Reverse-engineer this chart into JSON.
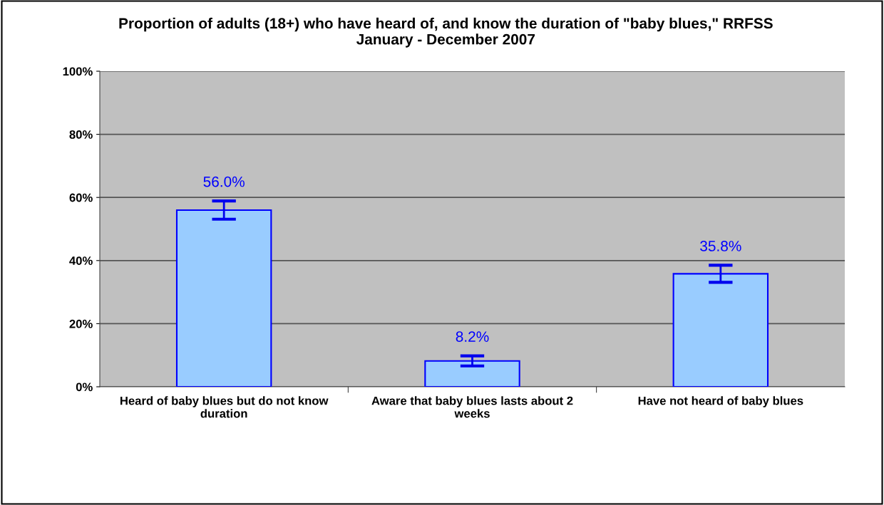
{
  "chart_data": {
    "type": "bar",
    "title": "Proportion of adults (18+) who have heard of, and know the duration of \"baby blues,\" RRFSS January - December 2007",
    "categories": [
      "Heard of baby blues but do not know duration",
      "Aware that baby blues lasts about 2 weeks",
      "Have not heard of baby blues"
    ],
    "values": [
      56.0,
      8.2,
      35.8
    ],
    "errors": [
      2.9,
      1.6,
      2.7
    ],
    "value_labels": [
      "56.0%",
      "8.2%",
      "35.8%"
    ],
    "color": "#99ccff",
    "ylim": [
      0,
      100
    ],
    "yticks": [
      {
        "value": 0,
        "label": "0%"
      },
      {
        "value": 20,
        "label": "20%"
      },
      {
        "value": 40,
        "label": "40%"
      },
      {
        "value": 60,
        "label": "60%"
      },
      {
        "value": 80,
        "label": "80%"
      },
      {
        "value": 100,
        "label": "100%"
      }
    ],
    "grid": "y",
    "legend": false
  }
}
